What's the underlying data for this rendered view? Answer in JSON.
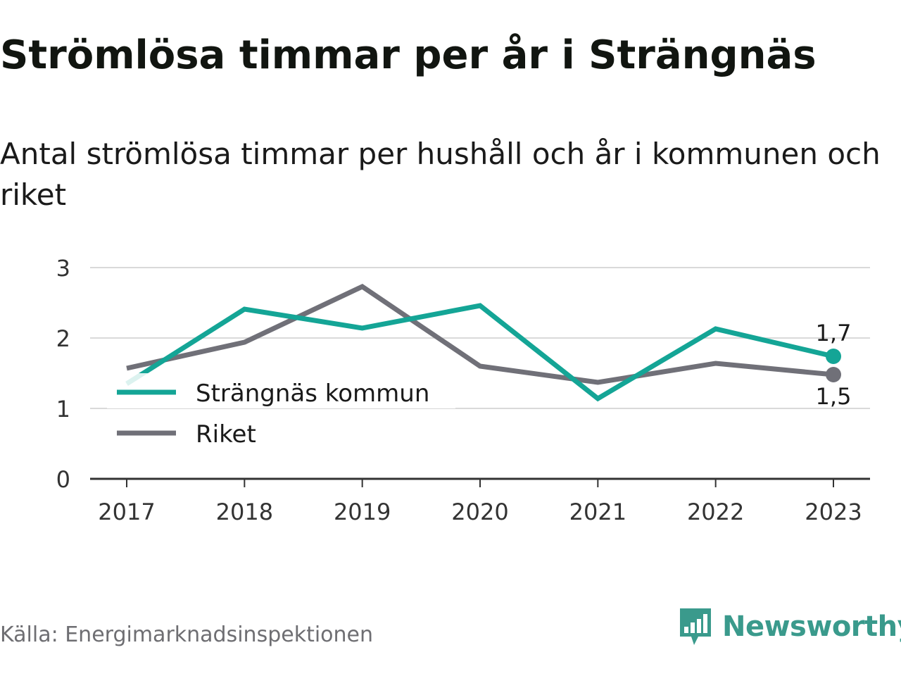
{
  "header": {
    "title": "Strömlösa timmar per år i Strängnäs",
    "subtitle": "Antal strömlösa timmar per hushåll och år i kommunen och riket"
  },
  "footer": {
    "source": "Källa: Energimarknadsinspektionen",
    "brand": "Newsworthy",
    "brand_icon": "bar-chart-speech-bubble-icon"
  },
  "colors": {
    "strangnas": "#14a596",
    "riket": "#707078",
    "grid": "#d9d9d9",
    "axis": "#333333",
    "brand": "#3a9a8c"
  },
  "chart_data": {
    "type": "line",
    "categories": [
      "2017",
      "2018",
      "2019",
      "2020",
      "2021",
      "2022",
      "2023"
    ],
    "series": [
      {
        "name": "Strängnäs kommun",
        "values": [
          1.35,
          2.41,
          2.14,
          2.46,
          1.14,
          2.13,
          1.74
        ]
      },
      {
        "name": "Riket",
        "values": [
          1.57,
          1.94,
          2.73,
          1.6,
          1.37,
          1.64,
          1.48
        ]
      }
    ],
    "yticks": [
      "0",
      "1",
      "2",
      "3"
    ],
    "ylim": [
      0,
      3
    ],
    "end_labels": [
      "1,7",
      "1,5"
    ],
    "legend_position": "bottom-left",
    "grid": true
  }
}
